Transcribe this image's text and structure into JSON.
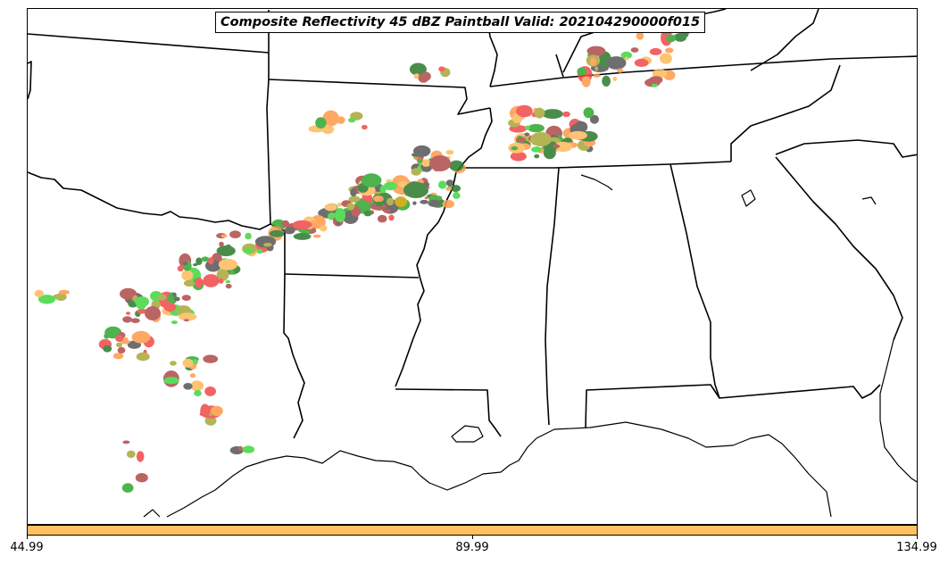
{
  "title": "Composite Reflectivity 45 dBZ Paintball Valid: 202104290000f015",
  "colorbar": {
    "color": "#ffc061",
    "ticks": [
      "44.99",
      "89.99",
      "134.99"
    ]
  },
  "colors": {
    "dark_gray": "#555555",
    "brown_red": "#b04a4a",
    "red": "#f04848",
    "orange": "#ff9a4a",
    "light_orange": "#ffb95c",
    "light_green": "#3fd63f",
    "green": "#2ea82e",
    "dark_green": "#2b7a2b",
    "forest": "#1e6b1e",
    "olive": "#a8a838",
    "gold": "#c8a000"
  }
}
